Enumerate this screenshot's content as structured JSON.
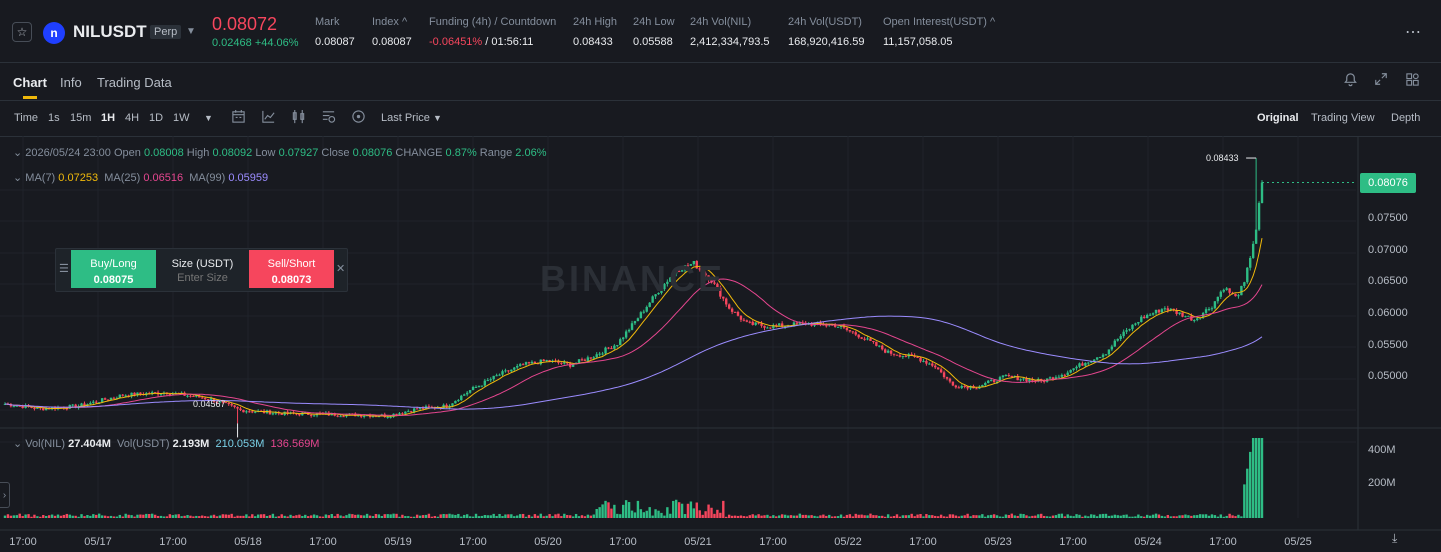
{
  "ticker": {
    "symbol": "NILUSDT",
    "badge": "Perp",
    "last_price": "0.08072",
    "change": "0.02468 +44.06%",
    "stats": [
      {
        "label": "Mark",
        "value": "0.08087"
      },
      {
        "label": "Index ^",
        "value": "0.08087"
      },
      {
        "label": "Funding (4h) / Countdown",
        "value_red": "-0.06451%",
        "value_rest": " / 01:56:11"
      },
      {
        "label": "24h High",
        "value": "0.08433"
      },
      {
        "label": "24h Low",
        "value": "0.05588"
      },
      {
        "label": "24h Vol(NIL)",
        "value": "2,412,334,793.5"
      },
      {
        "label": "24h Vol(USDT)",
        "value": "168,920,416.59"
      },
      {
        "label": "Open Interest(USDT) ^",
        "value": "11,157,058.05"
      }
    ],
    "more_icon": "⋯"
  },
  "tabs": [
    "Chart",
    "Info",
    "Trading Data"
  ],
  "toolbar": {
    "intervals": [
      "Time",
      "1s",
      "15m",
      "1H",
      "4H",
      "1D",
      "1W"
    ],
    "active_interval": "1H",
    "price_type": "Last Price",
    "views": [
      "Original",
      "Trading View",
      "Depth"
    ],
    "active_view": "Original"
  },
  "ohlc": {
    "time": "2026/05/24 23:00",
    "open_label": "Open",
    "open": "0.08008",
    "high_label": "High",
    "high": "0.08092",
    "low_label": "Low",
    "low": "0.07927",
    "close_label": "Close",
    "close": "0.08076",
    "change_label": "CHANGE",
    "change": "0.87%",
    "range_label": "Range",
    "range": "2.06%"
  },
  "ma": {
    "ma7_label": "MA(7)",
    "ma7": "0.07253",
    "ma25_label": "MA(25)",
    "ma25": "0.06516",
    "ma99_label": "MA(99)",
    "ma99": "0.05959"
  },
  "order_panel": {
    "buy_label": "Buy/Long",
    "buy_price": "0.08075",
    "size_label": "Size (USDT)",
    "size_placeholder": "Enter Size",
    "sell_label": "Sell/Short",
    "sell_price": "0.08073"
  },
  "watermark": "BINANCE",
  "price_axis": {
    "ticks": [
      "0.07500",
      "0.07000",
      "0.06500",
      "0.06000",
      "0.05500",
      "0.05000"
    ],
    "current": "0.08076",
    "high_marker": "0.08433",
    "low_marker": "0.04567"
  },
  "volume": {
    "nil_label": "Vol(NIL)",
    "nil": "27.404M",
    "usdt_label": "Vol(USDT)",
    "usdt": "2.193M",
    "ma1": "210.053M",
    "ma2": "136.569M",
    "ticks": [
      "400M",
      "200M"
    ]
  },
  "x_axis": [
    "17:00",
    "05/17",
    "17:00",
    "05/18",
    "17:00",
    "05/19",
    "17:00",
    "05/20",
    "17:00",
    "05/21",
    "17:00",
    "05/22",
    "17:00",
    "05/23",
    "17:00",
    "05/24",
    "17:00",
    "05/25"
  ],
  "colors": {
    "up": "#2ebd85",
    "down": "#f6465d",
    "ma7": "#f0b90b",
    "ma25": "#e5468f",
    "ma99": "#9b8cff",
    "bg": "#181a20"
  },
  "chart_data": {
    "type": "candlestick",
    "interval": "1H",
    "ylim": [
      0.045,
      0.0855
    ],
    "closes_anchor": [
      [
        0,
        0.0485
      ],
      [
        12,
        0.0478
      ],
      [
        25,
        0.0482
      ],
      [
        40,
        0.0498
      ],
      [
        55,
        0.0502
      ],
      [
        70,
        0.0492
      ],
      [
        80,
        0.0476
      ],
      [
        95,
        0.0471
      ],
      [
        110,
        0.047
      ],
      [
        120,
        0.0469
      ],
      [
        130,
        0.0468
      ],
      [
        140,
        0.0478
      ],
      [
        150,
        0.0482
      ],
      [
        158,
        0.0505
      ],
      [
        168,
        0.0528
      ],
      [
        176,
        0.0542
      ],
      [
        184,
        0.0548
      ],
      [
        192,
        0.0542
      ],
      [
        200,
        0.0555
      ],
      [
        208,
        0.0573
      ],
      [
        214,
        0.0605
      ],
      [
        222,
        0.065
      ],
      [
        228,
        0.068
      ],
      [
        234,
        0.069
      ],
      [
        240,
        0.0665
      ],
      [
        246,
        0.0625
      ],
      [
        252,
        0.0602
      ],
      [
        260,
        0.0598
      ],
      [
        272,
        0.0602
      ],
      [
        282,
        0.06
      ],
      [
        290,
        0.0585
      ],
      [
        300,
        0.056
      ],
      [
        310,
        0.0552
      ],
      [
        316,
        0.054
      ],
      [
        322,
        0.0512
      ],
      [
        330,
        0.051
      ],
      [
        340,
        0.0525
      ],
      [
        352,
        0.0518
      ],
      [
        360,
        0.053
      ],
      [
        368,
        0.0548
      ],
      [
        374,
        0.056
      ],
      [
        378,
        0.058
      ],
      [
        386,
        0.061
      ],
      [
        394,
        0.0625
      ],
      [
        400,
        0.0615
      ],
      [
        404,
        0.0608
      ],
      [
        410,
        0.0628
      ],
      [
        414,
        0.0655
      ],
      [
        418,
        0.064
      ],
      [
        421,
        0.066
      ],
      [
        423,
        0.07
      ],
      [
        425,
        0.074
      ],
      [
        427,
        0.0808
      ]
    ],
    "candle_count": 428,
    "high": 0.08433,
    "low": 0.04567,
    "last_close": 0.08076
  }
}
